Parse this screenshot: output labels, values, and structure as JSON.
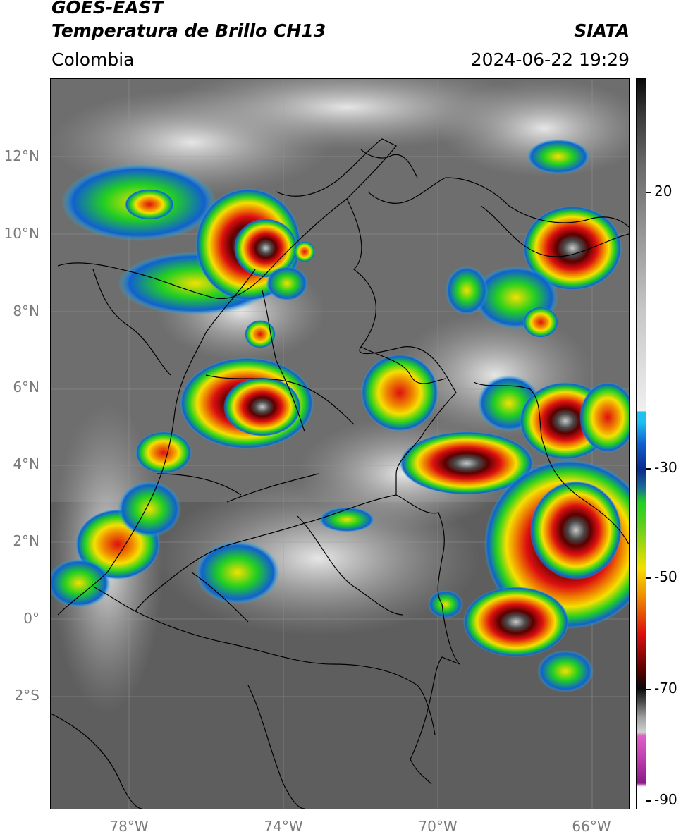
{
  "header": {
    "satellite": "GOES-EAST",
    "product": "Temperatura de Brillo CH13",
    "region": "Colombia",
    "source": "SIATA",
    "datetime": "2024-06-22 19:29"
  },
  "map": {
    "lat_labels": [
      "12°N",
      "10°N",
      "8°N",
      "6°N",
      "4°N",
      "2°N",
      "0°",
      "2°S"
    ],
    "lon_labels": [
      "78°W",
      "74°W",
      "70°W",
      "66°W"
    ]
  },
  "colorbar": {
    "ticks": [
      "20",
      "-30",
      "-50",
      "-70",
      "-90"
    ],
    "colors": {
      "white": "#ffffff",
      "magenta": "#e060c8",
      "purple": "#8a1a8a",
      "black": "#0a0a0a",
      "darkred": "#5a0000",
      "red": "#dd1010",
      "orange": "#f08a00",
      "yellow": "#f5e000",
      "green": "#22d020",
      "darkblue": "#0b2a8c",
      "blue": "#1060d0",
      "cyan": "#20c0f0"
    }
  }
}
